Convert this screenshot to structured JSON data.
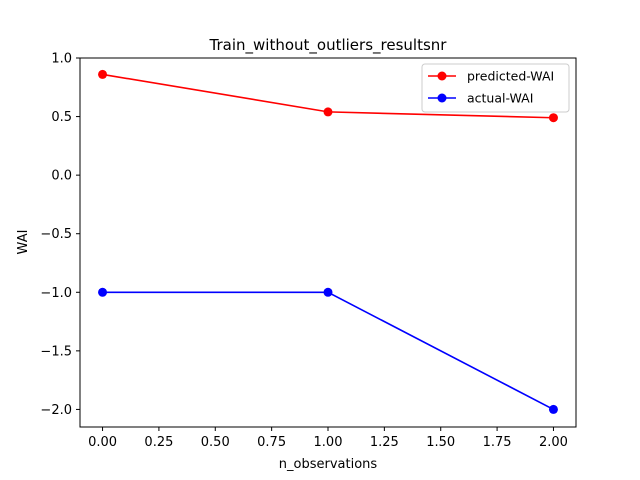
{
  "chart_data": {
    "type": "line",
    "title": "Train_without_outliers_resultsnr",
    "xlabel": "n_observations",
    "ylabel": "WAI",
    "x": [
      0,
      1,
      2
    ],
    "xlim": [
      -0.1,
      2.1
    ],
    "ylim": [
      -2.15,
      1.0
    ],
    "xticks": [
      0.0,
      0.25,
      0.5,
      0.75,
      1.0,
      1.25,
      1.5,
      1.75,
      2.0
    ],
    "xtick_labels": [
      "0.00",
      "0.25",
      "0.50",
      "0.75",
      "1.00",
      "1.25",
      "1.50",
      "1.75",
      "2.00"
    ],
    "yticks": [
      1.0,
      0.5,
      0.0,
      -0.5,
      -1.0,
      -1.5,
      -2.0
    ],
    "ytick_labels": [
      "1.0",
      "0.5",
      "0.0",
      "−0.5",
      "−1.0",
      "−1.5",
      "−2.0"
    ],
    "grid": false,
    "legend_position": "top-right",
    "series": [
      {
        "name": "predicted-WAI",
        "color": "#ff0000",
        "values": [
          0.86,
          0.54,
          0.49
        ]
      },
      {
        "name": "actual-WAI",
        "color": "#0000ff",
        "values": [
          -1.0,
          -1.0,
          -2.0
        ]
      }
    ]
  }
}
